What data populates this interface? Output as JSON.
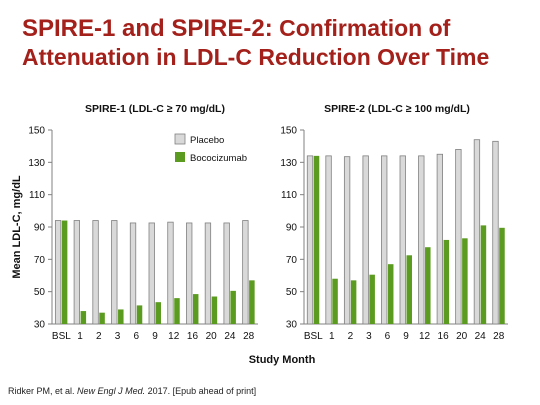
{
  "slide": {
    "title_part1": "SPIRE-1 and SPIRE-2:",
    "title_part2": "Confirmation of",
    "title_line2": "Attenuation in LDL-C Reduction Over Time",
    "citation_authors": "Ridker PM, et al.",
    "citation_journal": "New Engl J Med.",
    "citation_rest": "2017. [Epub ahead of print]"
  },
  "colors": {
    "placebo_fill": "#d9d9d9",
    "placebo_stroke": "#808080",
    "bococizumab_fill": "#5b9b1f",
    "title": "#a3201b"
  },
  "chart_data": {
    "type": "bar",
    "ylabel": "Mean LDL-C, mg/dL",
    "xlabel": "Study Month",
    "ylim": [
      30,
      150
    ],
    "yticks": [
      30,
      50,
      70,
      90,
      110,
      130,
      150
    ],
    "legend": {
      "placement": "top-right of SPIRE-1 panel"
    },
    "categories": [
      "BSL",
      "1",
      "2",
      "3",
      "6",
      "9",
      "12",
      "16",
      "20",
      "24",
      "28"
    ],
    "panels": [
      {
        "title": "SPIRE-1 (LDL-C ≥ 70 mg/dL)",
        "series": [
          {
            "name": "Placebo",
            "values": [
              94,
              94,
              94,
              94,
              92.5,
              92.5,
              93,
              92.5,
              92.5,
              92.5,
              94
            ]
          },
          {
            "name": "Bococizumab",
            "values": [
              94,
              38,
              37,
              39,
              41.5,
              43.5,
              46,
              48.5,
              47,
              50.5,
              57
            ]
          }
        ]
      },
      {
        "title": "SPIRE-2 (LDL-C ≥ 100 mg/dL)",
        "series": [
          {
            "name": "Placebo",
            "values": [
              134,
              134,
              133.5,
              134,
              134,
              134,
              134,
              135,
              138,
              144,
              143
            ]
          },
          {
            "name": "Bococizumab",
            "values": [
              134,
              58,
              57,
              60.5,
              67,
              72.5,
              77.5,
              82,
              83,
              91,
              89.5
            ]
          }
        ]
      }
    ]
  }
}
